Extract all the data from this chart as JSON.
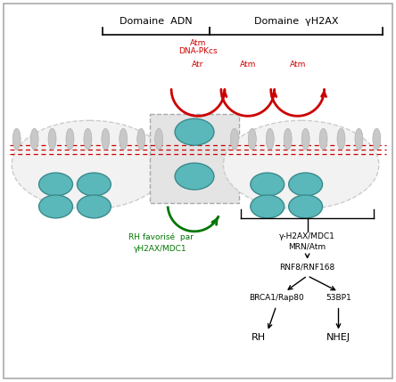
{
  "bg_color": "#ffffff",
  "border_color": "#aaaaaa",
  "domaine_adn_label": "Domaine  ADN",
  "domaine_yh2ax_label": "Domaine  γH2AX",
  "atm_dna_pkcs_label": "Atm\nDNA-PKcs",
  "atr_label": "Atr",
  "atm1_label": "Atm",
  "atm2_label": "Atm",
  "rh_fav_label": "RH favorisé  par\nγH2AX/MDC1",
  "gamma_mdc1_label": "γ-H2AX/MDC1\nMRN/Atm",
  "rnf_label": "RNF8/RNF168",
  "brca1_label": "BRCA1/Rap80",
  "p53bp1_label": "53BP1",
  "rh_label": "RH",
  "nhej_label": "NHEJ",
  "red": "#cc0000",
  "green": "#007700",
  "black": "#000000",
  "nucleosome_fill": "#5bb8ba",
  "nucleosome_edge": "#3a8a8c",
  "spike_color": "#c8c8c8",
  "circle_face": "#f2f2f2",
  "circle_edge": "#cccccc",
  "dsb_face": "#e4e4e4",
  "dsb_edge": "#aaaaaa",
  "dna_color": "#cc0000"
}
